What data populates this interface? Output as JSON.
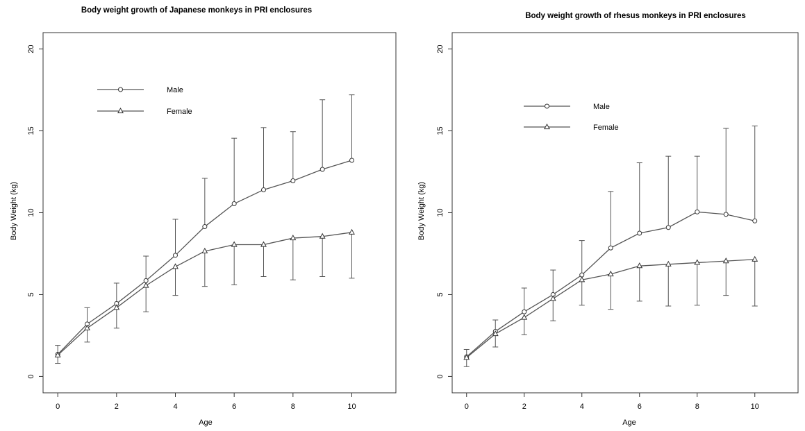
{
  "chart_data": [
    {
      "type": "line",
      "title": "Body weight growth of Japanese monkeys in PRI enclosures",
      "xlabel": "Age",
      "ylabel": "Body Weight (kg)",
      "xlim": [
        -0.5,
        11.5
      ],
      "ylim": [
        -1,
        21
      ],
      "x_ticks": [
        "0",
        "2",
        "4",
        "6",
        "8",
        "10"
      ],
      "y_ticks": [
        "0",
        "5",
        "10",
        "15",
        "20"
      ],
      "grid": false,
      "legend_position": "top-left",
      "x": [
        0,
        1,
        2,
        3,
        4,
        5,
        6,
        7,
        8,
        9,
        10
      ],
      "series": [
        {
          "name": "Male",
          "marker": "circle",
          "values": [
            1.35,
            3.2,
            4.45,
            5.85,
            7.4,
            9.15,
            10.55,
            11.4,
            11.95,
            12.65,
            13.2
          ],
          "error_upper": [
            1.9,
            4.2,
            5.7,
            7.35,
            9.6,
            12.1,
            14.55,
            15.2,
            14.95,
            16.9,
            17.2
          ],
          "error_lower": [
            null,
            null,
            null,
            null,
            null,
            null,
            null,
            null,
            null,
            null,
            null
          ]
        },
        {
          "name": "Female",
          "marker": "triangle",
          "values": [
            1.3,
            2.95,
            4.2,
            5.55,
            6.7,
            7.65,
            8.05,
            8.05,
            8.45,
            8.55,
            8.8
          ],
          "error_upper": [
            null,
            null,
            null,
            null,
            null,
            null,
            null,
            null,
            null,
            null,
            null
          ],
          "error_lower": [
            0.8,
            2.1,
            2.95,
            3.95,
            4.95,
            5.5,
            5.6,
            6.1,
            5.9,
            6.1,
            6.0
          ]
        }
      ]
    },
    {
      "type": "line",
      "title": "Body weight growth of rhesus monkeys in PRI enclosures",
      "xlabel": "Age",
      "ylabel": "Body Weight (kg)",
      "xlim": [
        -0.5,
        11.5
      ],
      "ylim": [
        -1,
        21
      ],
      "x_ticks": [
        "0",
        "2",
        "4",
        "6",
        "8",
        "10"
      ],
      "y_ticks": [
        "0",
        "5",
        "10",
        "15",
        "20"
      ],
      "grid": false,
      "legend_position": "top-left",
      "x": [
        0,
        1,
        2,
        3,
        4,
        5,
        6,
        7,
        8,
        9,
        10
      ],
      "series": [
        {
          "name": "Male",
          "marker": "circle",
          "values": [
            1.2,
            2.75,
            3.95,
            5.0,
            6.2,
            7.85,
            8.75,
            9.1,
            10.05,
            9.9,
            9.5
          ],
          "error_upper": [
            1.65,
            3.45,
            5.4,
            6.5,
            8.3,
            11.3,
            13.05,
            13.45,
            13.45,
            15.15,
            15.3
          ],
          "error_lower": [
            null,
            null,
            null,
            null,
            null,
            null,
            null,
            null,
            null,
            null,
            null
          ]
        },
        {
          "name": "Female",
          "marker": "triangle",
          "values": [
            1.15,
            2.6,
            3.6,
            4.75,
            5.9,
            6.25,
            6.75,
            6.85,
            6.95,
            7.05,
            7.15
          ],
          "error_upper": [
            null,
            null,
            null,
            null,
            null,
            null,
            null,
            null,
            null,
            null,
            null
          ],
          "error_lower": [
            0.6,
            1.8,
            2.55,
            3.4,
            4.35,
            4.1,
            4.6,
            4.3,
            4.35,
            4.95,
            4.3
          ]
        }
      ]
    }
  ]
}
